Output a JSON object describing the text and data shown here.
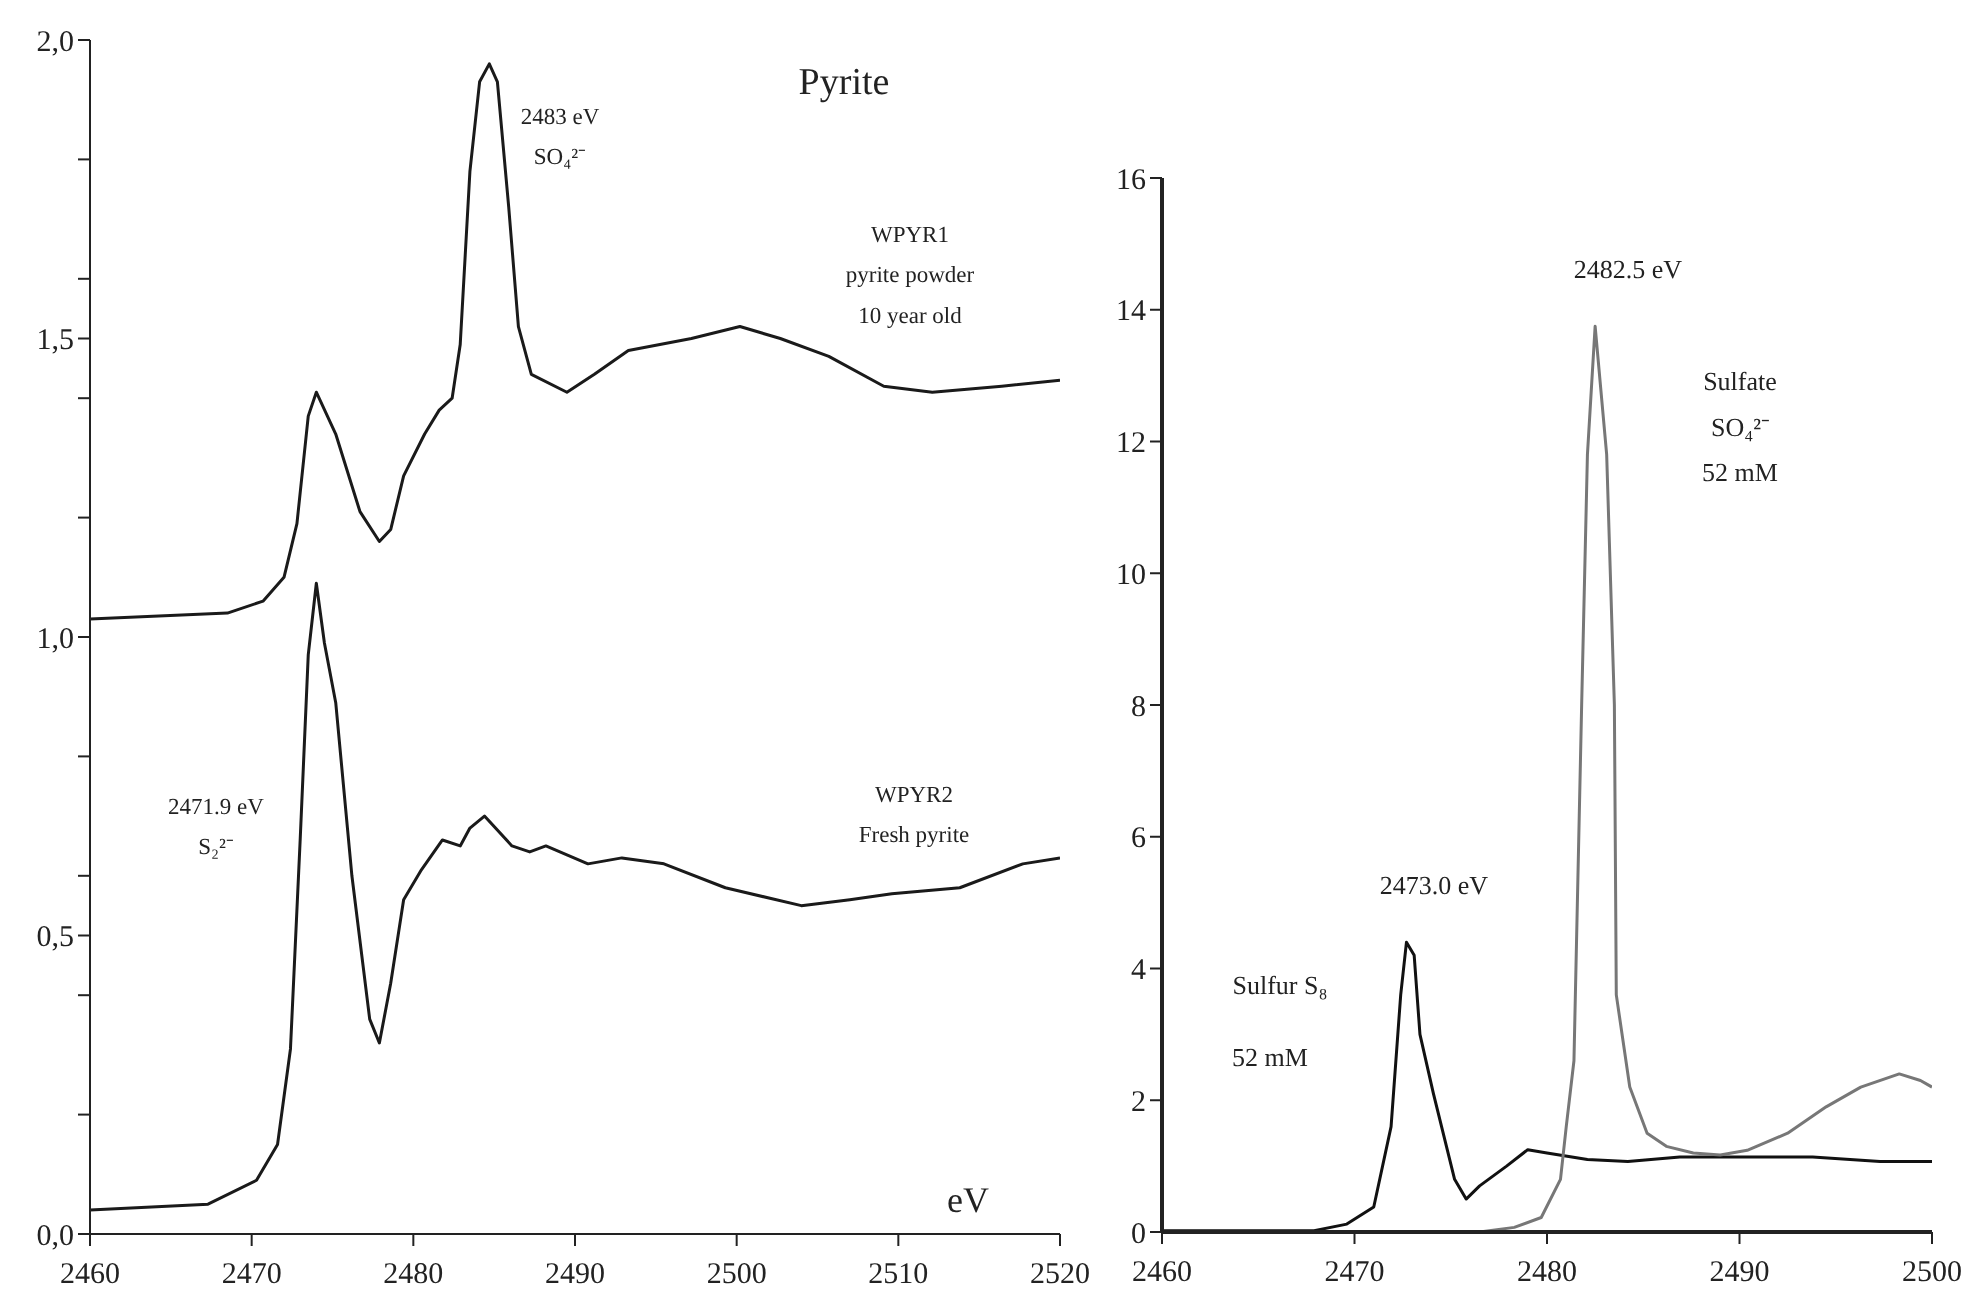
{
  "chart_data": [
    {
      "type": "line",
      "title": "Pyrite",
      "xlabel": "eV",
      "annotations": [
        "2483 eV\nSO₄²⁻",
        "WPYR1\npyrite powder\n10 year old",
        "2471.9  eV\nS₂²⁻",
        "WPYR2\nFresh pyrite"
      ],
      "xlim": [
        2460,
        2520
      ],
      "xticks": [
        2460,
        2470,
        2480,
        2490,
        2500,
        2510,
        2520
      ],
      "ylim": [
        0,
        2
      ],
      "yticks": [
        {
          "value": 0,
          "label": "0,0"
        },
        {
          "value": 0.2,
          "label": null
        },
        {
          "value": 0.4,
          "label": null
        },
        {
          "value": 0.5,
          "label": "0,5"
        },
        {
          "value": 0.6,
          "label": null
        },
        {
          "value": 0.8,
          "label": null
        },
        {
          "value": 1,
          "label": "1,0"
        },
        {
          "value": 1.2,
          "label": null
        },
        {
          "value": 1.4,
          "label": null
        },
        {
          "value": 1.5,
          "label": "1,5"
        },
        {
          "value": 1.6,
          "label": null
        },
        {
          "value": 1.8,
          "label": null
        },
        {
          "value": 2,
          "label": "2,0"
        }
      ],
      "marker": "none",
      "line_style": "solid",
      "series": [
        {
          "color": "#1a1a1a",
          "x": [
            2460,
            2468.5,
            2470.7,
            2472,
            2472.8,
            2473.5,
            2474,
            2475.2,
            2476.7,
            2477.9,
            2478.6,
            2479.4,
            2480.7,
            2481.6,
            2482.4,
            2482.9,
            2483.5,
            2484.1,
            2484.7,
            2485.2,
            2485.9,
            2486.5,
            2487.3,
            2489.5,
            2491.2,
            2493.3,
            2497.2,
            2500.2,
            2502.7,
            2505.7,
            2509.1,
            2512.1,
            2516.4,
            2520
          ],
          "values": [
            1.03,
            1.04,
            1.06,
            1.1,
            1.19,
            1.37,
            1.41,
            1.34,
            1.21,
            1.16,
            1.18,
            1.27,
            1.34,
            1.38,
            1.4,
            1.49,
            1.78,
            1.93,
            1.96,
            1.93,
            1.72,
            1.52,
            1.44,
            1.41,
            1.44,
            1.48,
            1.5,
            1.52,
            1.5,
            1.47,
            1.42,
            1.41,
            1.42,
            1.43
          ]
        },
        {
          "color": "#1a1a1a",
          "x": [
            2460,
            2467.3,
            2470.3,
            2471.6,
            2472.4,
            2473,
            2473.5,
            2474,
            2474.5,
            2475.2,
            2476.2,
            2477.3,
            2477.9,
            2478.6,
            2479.4,
            2480.5,
            2481.8,
            2482.9,
            2483.5,
            2484.4,
            2486.1,
            2487.2,
            2488.2,
            2490.8,
            2492.9,
            2495.5,
            2499.3,
            2504,
            2507,
            2509.6,
            2513.8,
            2517.7,
            2520
          ],
          "values": [
            0.04,
            0.05,
            0.09,
            0.15,
            0.31,
            0.66,
            0.97,
            1.09,
            0.99,
            0.89,
            0.6,
            0.36,
            0.32,
            0.42,
            0.56,
            0.61,
            0.66,
            0.65,
            0.68,
            0.7,
            0.65,
            0.64,
            0.65,
            0.62,
            0.63,
            0.62,
            0.58,
            0.55,
            0.56,
            0.57,
            0.58,
            0.62,
            0.63
          ]
        }
      ]
    },
    {
      "type": "line",
      "annotations": [
        "2482.5 eV",
        "Sulfate\nSO₄²⁻\n52 mM",
        "2473.0 eV",
        "Sulfur S₈",
        "52 mM"
      ],
      "xlim": [
        2460,
        2500
      ],
      "xticks": [
        2460,
        2470,
        2480,
        2490,
        2500
      ],
      "ylim": [
        0,
        16
      ],
      "yticks": [
        0,
        2,
        4,
        6,
        8,
        10,
        12,
        14,
        16
      ],
      "marker": "none",
      "line_style": "solid",
      "series": [
        {
          "color": "#111111",
          "x": [
            2460,
            2467.9,
            2469.6,
            2471,
            2471.9,
            2472.4,
            2472.7,
            2473.1,
            2473.4,
            2474.1,
            2475.2,
            2475.8,
            2476.5,
            2477.9,
            2479,
            2480,
            2482.1,
            2484.2,
            2486.9,
            2490.4,
            2493.8,
            2497.3,
            2500
          ],
          "values": [
            0.02,
            0.02,
            0.12,
            0.38,
            1.6,
            3.6,
            4.4,
            4.2,
            3,
            2.1,
            0.8,
            0.5,
            0.7,
            1,
            1.25,
            1.2,
            1.1,
            1.07,
            1.14,
            1.14,
            1.14,
            1.07,
            1.07
          ]
        },
        {
          "color": "#777777",
          "x": [
            2460,
            2476.5,
            2478.3,
            2479.7,
            2480.7,
            2481,
            2481.4,
            2481.8,
            2482.1,
            2482.5,
            2483.1,
            2483.5,
            2483.6,
            2484.3,
            2485.2,
            2486.2,
            2487.6,
            2489,
            2490.4,
            2492.5,
            2494.5,
            2496.3,
            2498.3,
            2499.4,
            2500
          ],
          "values": [
            0,
            0,
            0.07,
            0.22,
            0.8,
            1.6,
            2.6,
            8,
            11.8,
            13.75,
            11.8,
            8,
            3.6,
            2.2,
            1.5,
            1.3,
            1.2,
            1.17,
            1.24,
            1.5,
            1.9,
            2.2,
            2.4,
            2.3,
            2.2
          ]
        }
      ]
    }
  ]
}
